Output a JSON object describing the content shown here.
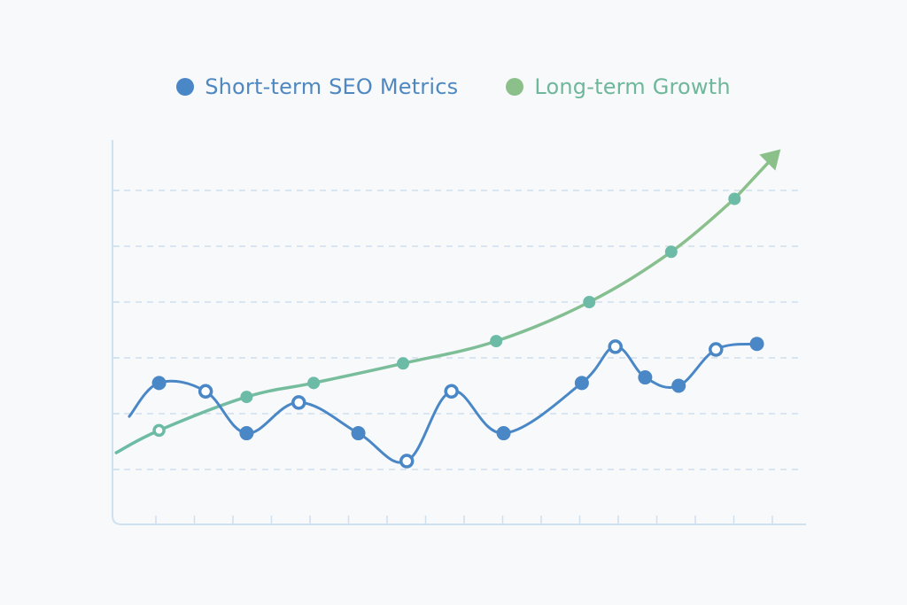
{
  "chart_data": {
    "type": "line",
    "title": "",
    "xlabel": "",
    "ylabel": "",
    "grid": true,
    "legend_position": "top",
    "x": [
      1,
      2,
      3,
      4,
      5,
      6,
      7,
      8,
      9,
      10,
      11,
      12,
      13,
      14,
      15
    ],
    "xlim": [
      0,
      17
    ],
    "ylim": [
      0,
      6
    ],
    "colors": {
      "short_term": "#4a87c6",
      "short_term_text": "#4f88c0",
      "long_term_start": "#6cbba6",
      "long_term_end": "#8cc08a",
      "long_term_text": "#6fb79a",
      "grid": "#cfe0ef",
      "axis": "#cfe0ef"
    },
    "series": [
      {
        "name": "Short-term SEO Metrics",
        "key": "short_term",
        "x": [
          1.25,
          2.5,
          3.6,
          5.0,
          6.6,
          7.9,
          9.1,
          10.5,
          12.6,
          13.5,
          14.3,
          15.2,
          16.2,
          17.3
        ],
        "values": [
          1.55,
          1.4,
          0.65,
          1.2,
          0.65,
          0.15,
          1.4,
          0.65,
          1.55,
          2.2,
          1.65,
          1.5,
          2.15,
          2.25
        ],
        "markers": [
          "solid",
          "hollow",
          "solid",
          "hollow",
          "solid",
          "hollow",
          "hollow",
          "solid",
          "solid",
          "hollow",
          "solid",
          "solid",
          "hollow",
          "solid"
        ]
      },
      {
        "name": "Long-term Growth",
        "key": "long_term",
        "x": [
          1.25,
          3.6,
          5.4,
          7.8,
          10.3,
          12.8,
          15.0,
          16.7
        ],
        "values": [
          0.7,
          1.3,
          1.55,
          1.9,
          2.3,
          3.0,
          3.9,
          4.85
        ],
        "markers": [
          "hollow",
          "solid",
          "solid",
          "solid",
          "solid",
          "solid",
          "solid",
          "solid"
        ],
        "trend": "up-arrow"
      }
    ]
  },
  "legend": {
    "items": [
      {
        "label": "Short-term SEO Metrics",
        "color": "#4a87c6",
        "text_color": "#4f88c0"
      },
      {
        "label": "Long-term Growth",
        "color": "#8cc08a",
        "text_color": "#6fb79a"
      }
    ]
  }
}
